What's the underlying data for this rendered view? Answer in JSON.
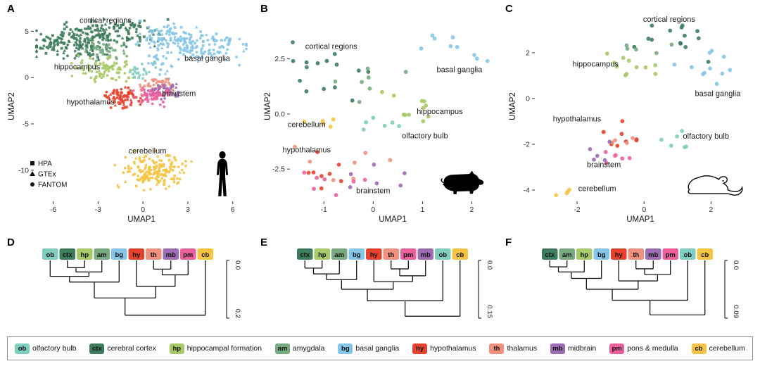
{
  "figure": {
    "background": "#ffffff"
  },
  "region_colors": {
    "ob": "#7fcdbf",
    "ctx": "#3e7c5e",
    "hp": "#a8c968",
    "am": "#77aa80",
    "bg": "#85c6e8",
    "hy": "#e8422e",
    "th": "#f0907e",
    "mb": "#9c6cb5",
    "pm": "#ec5f9d",
    "cb": "#f6c445"
  },
  "legend": {
    "items": [
      {
        "abbr": "ob",
        "label": "olfactory bulb"
      },
      {
        "abbr": "ctx",
        "label": "cerebral cortex"
      },
      {
        "abbr": "hp",
        "label": "hippocampal formation"
      },
      {
        "abbr": "am",
        "label": "amygdala"
      },
      {
        "abbr": "bg",
        "label": "basal ganglia"
      },
      {
        "abbr": "hy",
        "label": "hypothalamus"
      },
      {
        "abbr": "th",
        "label": "thalamus"
      },
      {
        "abbr": "mb",
        "label": "midbrain"
      },
      {
        "abbr": "pm",
        "label": "pons & medulla"
      },
      {
        "abbr": "cb",
        "label": "cerebellum"
      }
    ]
  },
  "chart_data": [
    {
      "id": "A",
      "type": "scatter",
      "panel_label": "A",
      "species_icon": "human-silhouette",
      "xlabel": "UMAP1",
      "ylabel": "UMAP2",
      "xlim": [
        -7.2,
        7.0
      ],
      "ylim": [
        -13.2,
        7.0
      ],
      "x_ticks": [
        {
          "v": -6,
          "label": "-6"
        },
        {
          "v": -3,
          "label": "-3"
        },
        {
          "v": 0,
          "label": "0"
        },
        {
          "v": 3,
          "label": "3"
        },
        {
          "v": 6,
          "label": "6"
        }
      ],
      "y_ticks": [
        {
          "v": 5,
          "label": "5"
        },
        {
          "v": 0,
          "label": "0"
        },
        {
          "v": -5,
          "label": "-5"
        },
        {
          "v": -10,
          "label": "-10"
        }
      ],
      "mixed_markers": true,
      "point_radius": 1.9,
      "marker_legend": [
        {
          "marker": "square",
          "label": "HPA"
        },
        {
          "marker": "triangle",
          "label": "GTEx"
        },
        {
          "marker": "circle",
          "label": "FANTOM"
        }
      ],
      "annotations": [
        {
          "text": "cortical regions",
          "x": -2.5,
          "y": 5.9
        },
        {
          "text": "basal ganglia",
          "x": 4.3,
          "y": 1.8
        },
        {
          "text": "hippocampus",
          "x": -4.4,
          "y": 0.9
        },
        {
          "text": "hypothalamus",
          "x": -3.5,
          "y": -2.9
        },
        {
          "text": "brainstem",
          "x": 2.4,
          "y": -2.0
        },
        {
          "text": "cerebellum",
          "x": 0.3,
          "y": -8.2
        }
      ],
      "clusters": [
        {
          "region": "ctx",
          "cx": -4.8,
          "cy": 3.8,
          "sx": 1.3,
          "sy": 0.85,
          "n": 150
        },
        {
          "region": "ctx",
          "cx": -2.0,
          "cy": 4.8,
          "sx": 1.4,
          "sy": 0.75,
          "n": 130
        },
        {
          "region": "am",
          "cx": -2.6,
          "cy": 3.0,
          "sx": 0.8,
          "sy": 0.5,
          "n": 45
        },
        {
          "region": "bg",
          "cx": 1.8,
          "cy": 4.4,
          "sx": 1.2,
          "sy": 0.7,
          "n": 95
        },
        {
          "region": "bg",
          "cx": 4.2,
          "cy": 3.3,
          "sx": 1.4,
          "sy": 0.8,
          "n": 95
        },
        {
          "region": "bg",
          "cx": 1.0,
          "cy": 1.6,
          "sx": 0.5,
          "sy": 0.9,
          "n": 25
        },
        {
          "region": "hp",
          "cx": -2.6,
          "cy": 0.9,
          "sx": 0.85,
          "sy": 0.6,
          "n": 85
        },
        {
          "region": "ob",
          "cx": -0.1,
          "cy": 0.7,
          "sx": 0.5,
          "sy": 0.4,
          "n": 22
        },
        {
          "region": "hy",
          "cx": -1.6,
          "cy": -2.2,
          "sx": 0.6,
          "sy": 0.5,
          "n": 75
        },
        {
          "region": "th",
          "cx": 0.9,
          "cy": -0.9,
          "sx": 0.55,
          "sy": 0.45,
          "n": 55
        },
        {
          "region": "mb",
          "cx": 1.4,
          "cy": -1.5,
          "sx": 0.5,
          "sy": 0.4,
          "n": 45
        },
        {
          "region": "pm",
          "cx": 0.6,
          "cy": -2.0,
          "sx": 0.6,
          "sy": 0.45,
          "n": 55
        },
        {
          "region": "cb",
          "cx": 0.7,
          "cy": -10.0,
          "sx": 0.95,
          "sy": 0.85,
          "n": 170
        }
      ]
    },
    {
      "id": "B",
      "type": "scatter",
      "panel_label": "B",
      "species_icon": "pig-silhouette",
      "xlabel": "UMAP1",
      "ylabel": "UMAP2",
      "xlim": [
        -1.66,
        2.45
      ],
      "ylim": [
        -3.9,
        4.6
      ],
      "x_ticks": [
        {
          "v": -1,
          "label": "-1"
        },
        {
          "v": 0,
          "label": "0"
        },
        {
          "v": 1,
          "label": "1"
        },
        {
          "v": 2,
          "label": "2"
        }
      ],
      "y_ticks": [
        {
          "v": 2.5,
          "label": "2.5"
        },
        {
          "v": 0,
          "label": "0.0"
        },
        {
          "v": -2.5,
          "label": "-2.5"
        }
      ],
      "mixed_markers": false,
      "point_radius": 2.9,
      "annotations": [
        {
          "text": "cortical regions",
          "x": -0.85,
          "y": 2.95
        },
        {
          "text": "basal ganglia",
          "x": 1.75,
          "y": 1.9
        },
        {
          "text": "hippocampus",
          "x": 1.35,
          "y": 0.0
        },
        {
          "text": "olfactory bulb",
          "x": 1.05,
          "y": -1.1
        },
        {
          "text": "cerebellum",
          "x": -1.35,
          "y": -0.6
        },
        {
          "text": "hypothalamus",
          "x": -1.35,
          "y": -1.75
        },
        {
          "text": "brainstem",
          "x": 0.0,
          "y": -3.6
        }
      ],
      "clusters": [
        {
          "region": "ctx",
          "cx": -0.75,
          "cy": 2.35,
          "sx": 0.45,
          "sy": 0.7,
          "n": 15
        },
        {
          "region": "am",
          "cx": -0.2,
          "cy": 1.5,
          "sx": 0.4,
          "sy": 0.4,
          "n": 7
        },
        {
          "region": "bg",
          "cx": 1.7,
          "cy": 2.8,
          "sx": 0.4,
          "sy": 0.6,
          "n": 9
        },
        {
          "region": "hp",
          "cx": 0.55,
          "cy": 0.15,
          "sx": 0.42,
          "sy": 0.45,
          "n": 11
        },
        {
          "region": "ob",
          "cx": 0.25,
          "cy": -0.7,
          "sx": 0.3,
          "sy": 0.28,
          "n": 6
        },
        {
          "region": "cb",
          "cx": -1.05,
          "cy": -0.5,
          "sx": 0.18,
          "sy": 0.22,
          "n": 5
        },
        {
          "region": "hy",
          "cx": -0.95,
          "cy": -2.4,
          "sx": 0.28,
          "sy": 0.42,
          "n": 8
        },
        {
          "region": "th",
          "cx": -0.5,
          "cy": -2.3,
          "sx": 0.45,
          "sy": 0.35,
          "n": 7
        },
        {
          "region": "mb",
          "cx": -0.1,
          "cy": -2.85,
          "sx": 0.45,
          "sy": 0.3,
          "n": 6
        },
        {
          "region": "pm",
          "cx": -0.55,
          "cy": -3.1,
          "sx": 0.45,
          "sy": 0.28,
          "n": 7
        }
      ]
    },
    {
      "id": "C",
      "type": "scatter",
      "panel_label": "C",
      "species_icon": "mouse-silhouette",
      "xlabel": "UMAP1",
      "ylabel": "UMAP2",
      "xlim": [
        -3.22,
        3.0
      ],
      "ylim": [
        -4.43,
        3.75
      ],
      "x_ticks": [
        {
          "v": -2,
          "label": "-2"
        },
        {
          "v": 0,
          "label": "0"
        },
        {
          "v": 2,
          "label": "2"
        }
      ],
      "y_ticks": [
        {
          "v": 2,
          "label": "2"
        },
        {
          "v": 0,
          "label": "0"
        },
        {
          "v": -2,
          "label": "-2"
        },
        {
          "v": -4,
          "label": "-4"
        }
      ],
      "mixed_markers": false,
      "point_radius": 2.9,
      "annotations": [
        {
          "text": "cortical regions",
          "x": 0.75,
          "y": 3.35
        },
        {
          "text": "hippocampus",
          "x": -1.45,
          "y": 1.4
        },
        {
          "text": "basal ganglia",
          "x": 2.2,
          "y": 0.1
        },
        {
          "text": "hypothalamus",
          "x": -2.0,
          "y": -1.0
        },
        {
          "text": "olfactory bulb",
          "x": 1.85,
          "y": -1.75
        },
        {
          "text": "brainstem",
          "x": -1.2,
          "y": -3.0
        },
        {
          "text": "cerebellum",
          "x": -1.4,
          "y": -4.05
        }
      ],
      "clusters": [
        {
          "region": "ctx",
          "cx": 0.6,
          "cy": 2.55,
          "sx": 0.6,
          "sy": 0.35,
          "n": 14
        },
        {
          "region": "am",
          "cx": 0.0,
          "cy": 1.9,
          "sx": 0.35,
          "sy": 0.25,
          "n": 5
        },
        {
          "region": "hp",
          "cx": -0.5,
          "cy": 1.3,
          "sx": 0.5,
          "sy": 0.3,
          "n": 11
        },
        {
          "region": "bg",
          "cx": 1.9,
          "cy": 1.0,
          "sx": 0.45,
          "sy": 0.55,
          "n": 11
        },
        {
          "region": "ob",
          "cx": 1.0,
          "cy": -1.8,
          "sx": 0.3,
          "sy": 0.25,
          "n": 6
        },
        {
          "region": "hy",
          "cx": -0.8,
          "cy": -1.5,
          "sx": 0.3,
          "sy": 0.3,
          "n": 8
        },
        {
          "region": "th",
          "cx": -0.6,
          "cy": -2.0,
          "sx": 0.3,
          "sy": 0.25,
          "n": 5
        },
        {
          "region": "mb",
          "cx": -1.15,
          "cy": -2.35,
          "sx": 0.3,
          "sy": 0.25,
          "n": 5
        },
        {
          "region": "pm",
          "cx": -0.85,
          "cy": -2.65,
          "sx": 0.35,
          "sy": 0.25,
          "n": 5
        },
        {
          "region": "cb",
          "cx": -2.55,
          "cy": -4.05,
          "sx": 0.2,
          "sy": 0.15,
          "n": 4
        }
      ]
    },
    {
      "id": "D",
      "type": "dendrogram",
      "panel_label": "D",
      "leaves": [
        "ob",
        "ctx",
        "hp",
        "am",
        "bg",
        "hy",
        "th",
        "mb",
        "pm",
        "cb"
      ],
      "scale_max": 0.2,
      "scale_ticks": [
        {
          "pos": 0,
          "label": "0.0"
        },
        {
          "pos": 0.2,
          "label": "0.2"
        }
      ],
      "tree": {
        "h": 0.19,
        "c": [
          {
            "h": 0.13,
            "c": [
              {
                "h": 0.075,
                "c": [
                  {
                    "h": 0.055,
                    "c": [
                      {
                        "leaf": "ob"
                      },
                      {
                        "h": 0.04,
                        "c": [
                          {
                            "h": 0.025,
                            "c": [
                              {
                                "leaf": "ctx"
                              },
                              {
                                "leaf": "hp"
                              }
                            ]
                          },
                          {
                            "leaf": "am"
                          }
                        ]
                      }
                    ]
                  },
                  {
                    "leaf": "bg"
                  }
                ]
              },
              {
                "h": 0.09,
                "c": [
                  {
                    "leaf": "hy"
                  },
                  {
                    "h": 0.05,
                    "c": [
                      {
                        "h": 0.03,
                        "c": [
                          {
                            "leaf": "th"
                          },
                          {
                            "leaf": "mb"
                          }
                        ]
                      },
                      {
                        "leaf": "pm"
                      }
                    ]
                  }
                ]
              }
            ]
          },
          {
            "leaf": "cb"
          }
        ]
      }
    },
    {
      "id": "E",
      "type": "dendrogram",
      "panel_label": "E",
      "leaves": [
        "ctx",
        "hp",
        "am",
        "bg",
        "hy",
        "th",
        "pm",
        "mb",
        "ob",
        "cb"
      ],
      "scale_max": 0.15,
      "scale_ticks": [
        {
          "pos": 0,
          "label": "0.0"
        },
        {
          "pos": 0.15,
          "label": "0.15"
        }
      ],
      "tree": {
        "h": 0.145,
        "c": [
          {
            "h": 0.105,
            "c": [
              {
                "h": 0.075,
                "c": [
                  {
                    "h": 0.05,
                    "c": [
                      {
                        "h": 0.035,
                        "c": [
                          {
                            "h": 0.02,
                            "c": [
                              {
                                "leaf": "ctx"
                              },
                              {
                                "leaf": "hp"
                              }
                            ]
                          },
                          {
                            "leaf": "am"
                          }
                        ]
                      },
                      {
                        "leaf": "bg"
                      }
                    ]
                  },
                  {
                    "h": 0.055,
                    "c": [
                      {
                        "leaf": "hy"
                      },
                      {
                        "h": 0.04,
                        "c": [
                          {
                            "h": 0.022,
                            "c": [
                              {
                                "leaf": "th"
                              },
                              {
                                "leaf": "pm"
                              }
                            ]
                          },
                          {
                            "leaf": "mb"
                          }
                        ]
                      }
                    ]
                  }
                ]
              },
              {
                "leaf": "ob"
              }
            ]
          },
          {
            "leaf": "cb"
          }
        ]
      }
    },
    {
      "id": "F",
      "type": "dendrogram",
      "panel_label": "F",
      "leaves": [
        "ctx",
        "am",
        "hp",
        "bg",
        "hy",
        "th",
        "mb",
        "pm",
        "ob",
        "cb"
      ],
      "scale_max": 0.09,
      "scale_ticks": [
        {
          "pos": 0,
          "label": "0.0"
        },
        {
          "pos": 0.09,
          "label": "0.09"
        }
      ],
      "tree": {
        "h": 0.085,
        "c": [
          {
            "h": 0.062,
            "c": [
              {
                "h": 0.045,
                "c": [
                  {
                    "h": 0.028,
                    "c": [
                      {
                        "h": 0.018,
                        "c": [
                          {
                            "h": 0.01,
                            "c": [
                              {
                                "leaf": "ctx"
                              },
                              {
                                "leaf": "am"
                              }
                            ]
                          },
                          {
                            "leaf": "hp"
                          }
                        ]
                      },
                      {
                        "leaf": "bg"
                      }
                    ]
                  },
                  {
                    "h": 0.032,
                    "c": [
                      {
                        "leaf": "hy"
                      },
                      {
                        "h": 0.022,
                        "c": [
                          {
                            "h": 0.013,
                            "c": [
                              {
                                "leaf": "th"
                              },
                              {
                                "leaf": "mb"
                              }
                            ]
                          },
                          {
                            "leaf": "pm"
                          }
                        ]
                      }
                    ]
                  }
                ]
              },
              {
                "leaf": "ob"
              }
            ]
          },
          {
            "leaf": "cb"
          }
        ]
      }
    }
  ]
}
